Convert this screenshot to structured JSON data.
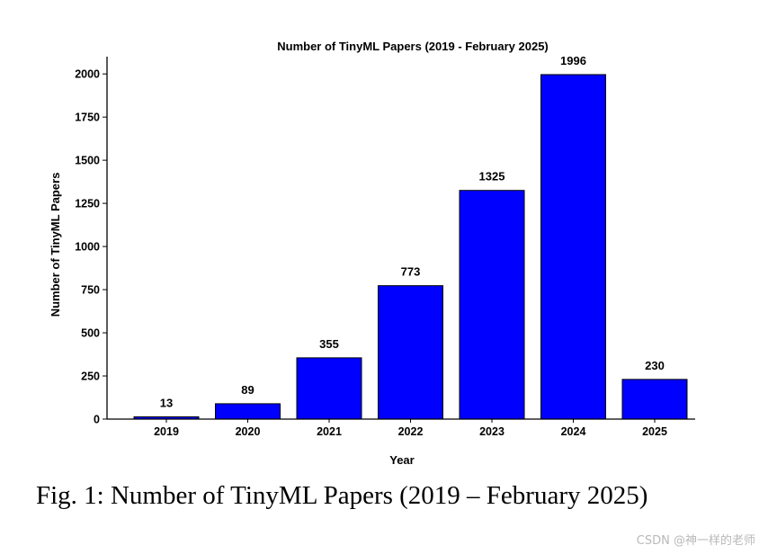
{
  "chart_data": {
    "type": "bar",
    "title": "Number of TinyML Papers (2019 - February 2025)",
    "xlabel": "Year",
    "ylabel": "Number of TinyML Papers",
    "categories": [
      "2019",
      "2020",
      "2021",
      "2022",
      "2023",
      "2024",
      "2025"
    ],
    "values": [
      13,
      89,
      355,
      773,
      1325,
      1996,
      230
    ],
    "data_labels": [
      "13",
      "89",
      "355",
      "773",
      "1325",
      "1996",
      "230"
    ],
    "ylim": [
      0,
      2100
    ],
    "yticks": [
      0,
      250,
      500,
      750,
      1000,
      1250,
      1500,
      1750,
      2000
    ],
    "bar_color": "#0000ff",
    "edge_color": "#000000",
    "grid": false,
    "legend": false
  },
  "caption": "Fig. 1: Number of TinyML Papers (2019 – February 2025)",
  "watermark": "CSDN @神一样的老师"
}
